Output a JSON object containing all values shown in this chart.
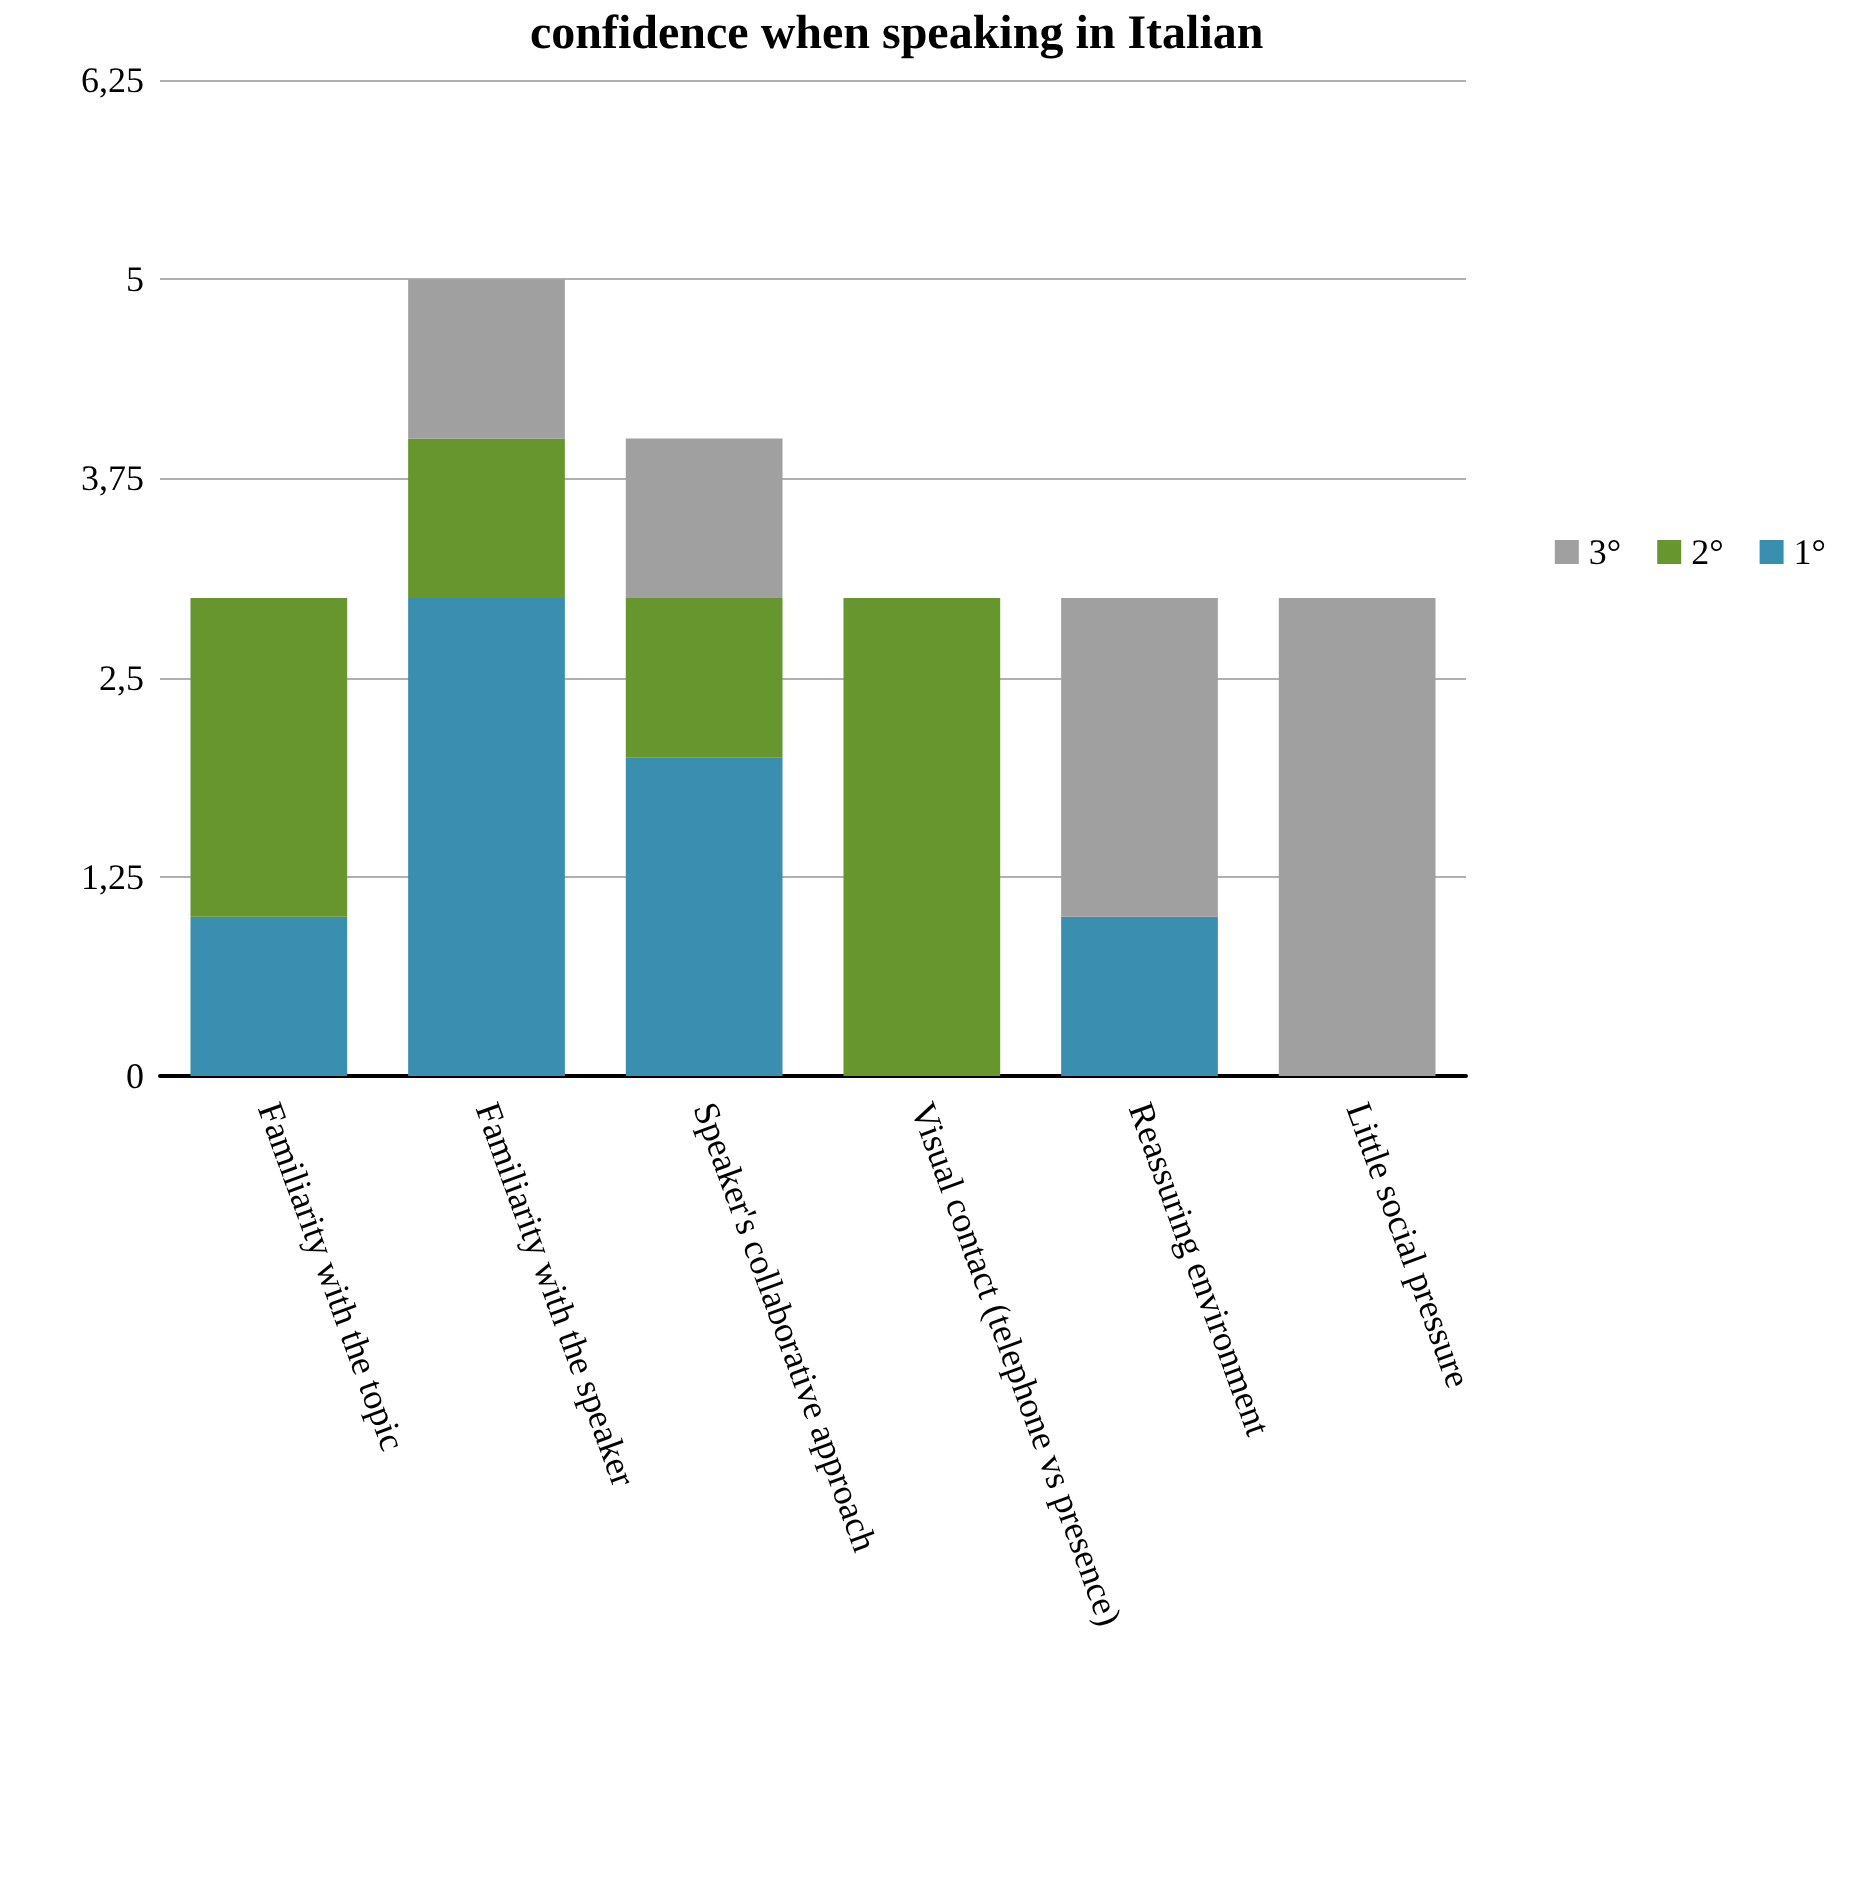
{
  "chart_data": {
    "type": "bar",
    "title": "confidence when speaking in Italian",
    "stacked": true,
    "categories": [
      "Familiarity with the topic",
      "Familiarity with the speaker",
      "Speaker's collaborative approach",
      "Visual contact (telephone vs presence)",
      "Reassuring environment",
      "Little social pressure"
    ],
    "series": [
      {
        "name": "1°",
        "color": "#3a8fb0",
        "values": [
          1,
          3,
          2,
          0,
          1,
          0
        ]
      },
      {
        "name": "2°",
        "color": "#67962f",
        "values": [
          2,
          1,
          1,
          3,
          0,
          0
        ]
      },
      {
        "name": "3°",
        "color": "#a0a0a0",
        "values": [
          0,
          1,
          1,
          0,
          2,
          3
        ]
      }
    ],
    "ylim": [
      0,
      6.25
    ],
    "yticks": [
      0,
      {
        "value": 1.25,
        "label": "1,25"
      },
      {
        "value": 2.5,
        "label": "2,5"
      },
      {
        "value": 3.75,
        "label": "3,75"
      },
      5,
      {
        "value": 6.25,
        "label": "6,25"
      }
    ],
    "grid": "y",
    "legend": "right"
  }
}
